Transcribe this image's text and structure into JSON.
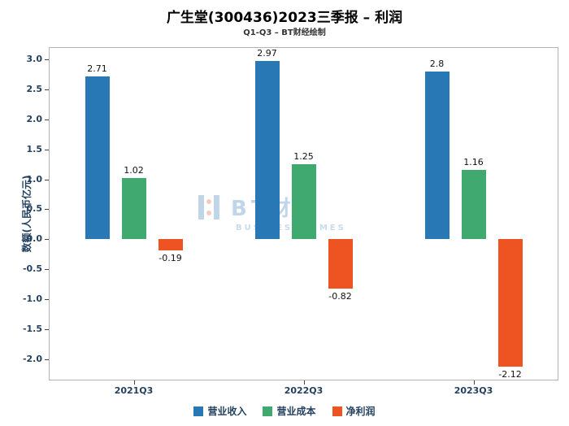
{
  "title": "广生堂(300436)2023三季报 – 利润",
  "subtitle": "Q1-Q3 – BT财经绘制",
  "watermark": {
    "text": "BT财经",
    "subtext": "BUSINESS TIMES"
  },
  "chart_data": {
    "type": "bar",
    "title": "广生堂(300436)2023三季报 – 利润",
    "subtitle": "Q1-Q3 – BT财经绘制",
    "categories": [
      "2021Q3",
      "2022Q3",
      "2023Q3"
    ],
    "series": [
      {
        "name": "营业收入",
        "color": "#2878b5",
        "values": [
          2.71,
          2.97,
          2.8
        ]
      },
      {
        "name": "营业成本",
        "color": "#3fa96f",
        "values": [
          1.02,
          1.25,
          1.16
        ]
      },
      {
        "name": "净利润",
        "color": "#ee5322",
        "values": [
          -0.19,
          -0.82,
          -2.12
        ]
      }
    ],
    "xlabel": "",
    "ylabel": "数额(人民币亿元)",
    "ylim": [
      -2.35,
      3.2
    ],
    "yticks": [
      3.0,
      2.5,
      2.0,
      1.5,
      1.0,
      0.5,
      0.0,
      -0.5,
      -1.0,
      -1.5,
      -2.0
    ],
    "grid": false,
    "legend_position": "bottom"
  }
}
